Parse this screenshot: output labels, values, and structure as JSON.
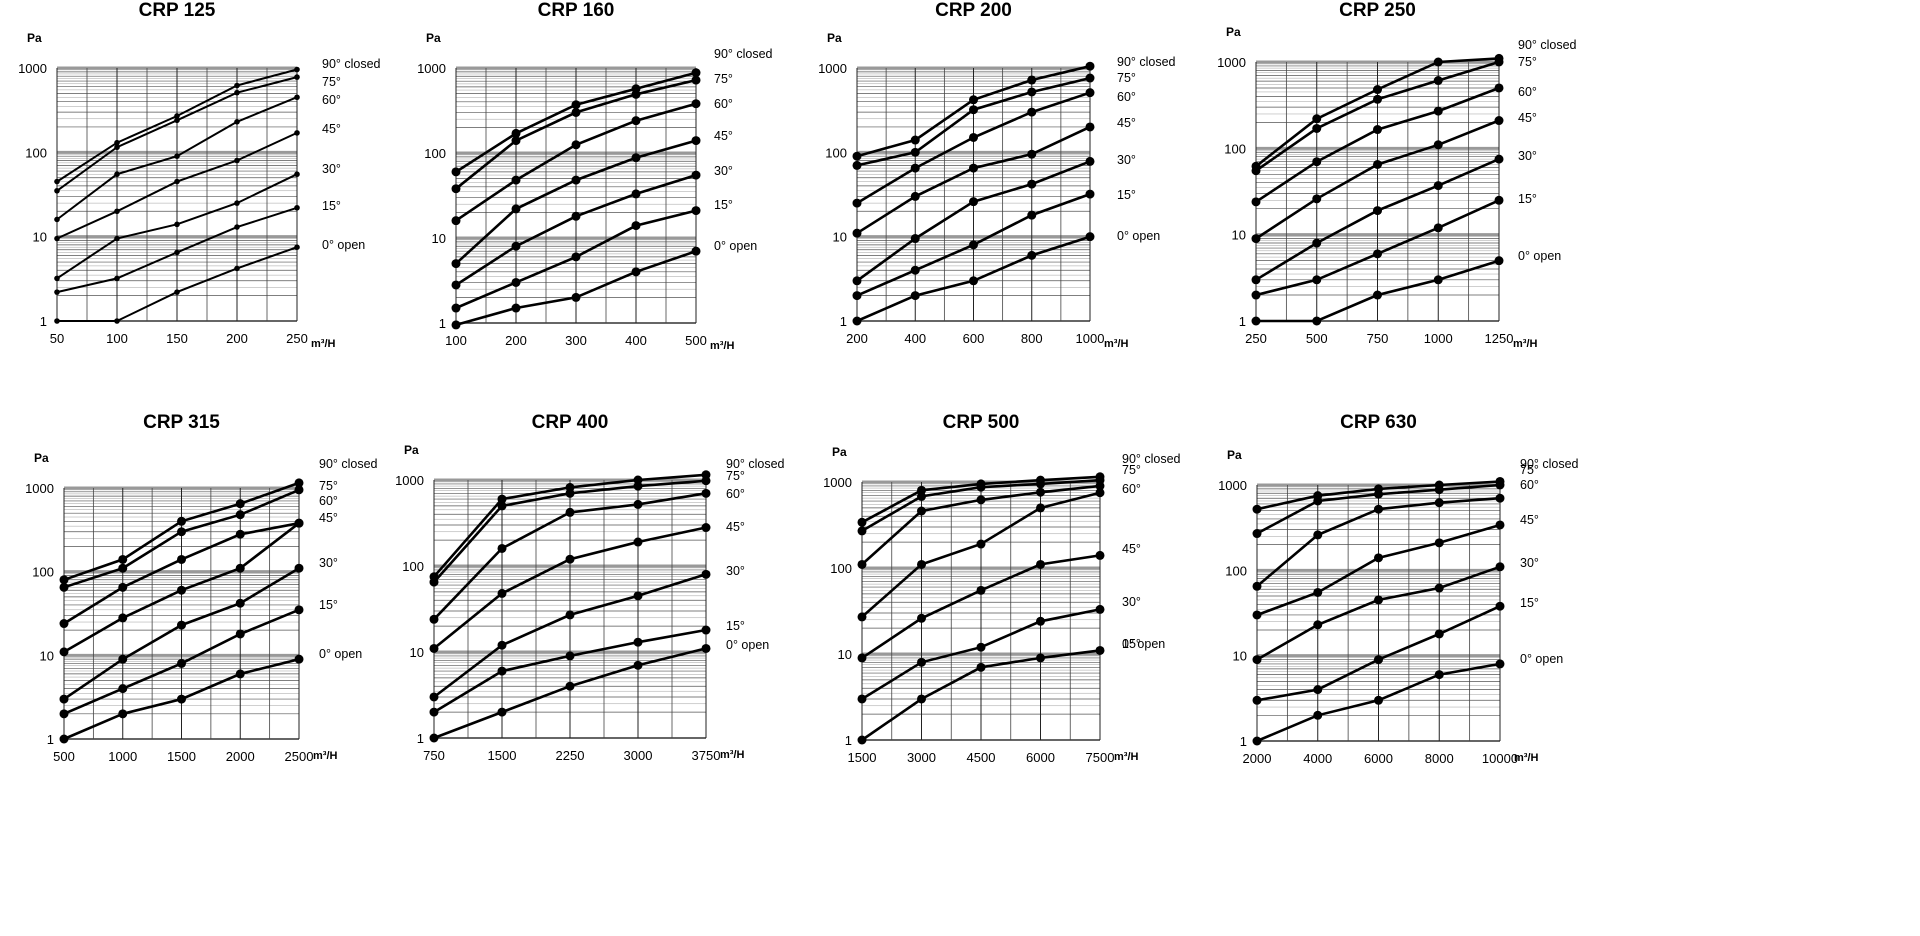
{
  "common": {
    "y_unit": "Pa",
    "x_unit": "m³/H"
  },
  "chart_data": [
    {
      "type": "line",
      "title": "CRP 125",
      "ylabel": "Pa",
      "xlabel": "m³/H",
      "x": [
        50,
        100,
        150,
        200,
        250
      ],
      "xlim": [
        50,
        250
      ],
      "ylim": [
        1,
        1000
      ],
      "yscale": "log",
      "xticks": [
        "50",
        "100",
        "150",
        "200",
        "250"
      ],
      "yticks": [
        "1",
        "10",
        "100",
        "1000"
      ],
      "grid": true,
      "series": [
        {
          "name": "90° closed",
          "values": [
            45,
            130,
            270,
            620,
            960
          ]
        },
        {
          "name": "75°",
          "values": [
            35,
            115,
            240,
            510,
            780
          ]
        },
        {
          "name": "60°",
          "values": [
            16,
            55,
            90,
            230,
            450
          ]
        },
        {
          "name": "45°",
          "values": [
            9.5,
            20,
            45,
            80,
            170
          ]
        },
        {
          "name": "30°",
          "values": [
            3.2,
            9.5,
            14,
            25,
            55
          ]
        },
        {
          "name": "15°",
          "values": [
            2.2,
            3.2,
            6.5,
            13,
            22
          ]
        },
        {
          "name": "0° open",
          "values": [
            1,
            1,
            2.2,
            4.2,
            7.5
          ]
        }
      ]
    },
    {
      "type": "line",
      "title": "CRP 160",
      "ylabel": "Pa",
      "xlabel": "m³/H",
      "x": [
        100,
        200,
        300,
        400,
        500
      ],
      "xlim": [
        100,
        500
      ],
      "ylim": [
        1,
        1000
      ],
      "yscale": "log",
      "xticks": [
        "100",
        "200",
        "300",
        "400",
        "500"
      ],
      "yticks": [
        "1",
        "10",
        "100",
        "1000"
      ],
      "grid": true,
      "series": [
        {
          "name": "90° closed",
          "values": [
            60,
            170,
            370,
            570,
            880
          ]
        },
        {
          "name": "75°",
          "values": [
            38,
            140,
            300,
            490,
            720
          ]
        },
        {
          "name": "60°",
          "values": [
            16,
            48,
            125,
            240,
            380
          ]
        },
        {
          "name": "45°",
          "values": [
            5,
            22,
            48,
            88,
            140
          ]
        },
        {
          "name": "30°",
          "values": [
            2.8,
            8,
            18,
            33,
            55
          ]
        },
        {
          "name": "15°",
          "values": [
            1.5,
            3,
            6,
            14,
            21
          ]
        },
        {
          "name": "0° open",
          "values": [
            0.95,
            1.5,
            2,
            4,
            7
          ]
        }
      ]
    },
    {
      "type": "line",
      "title": "CRP 200",
      "ylabel": "Pa",
      "xlabel": "m³/H",
      "x": [
        200,
        400,
        600,
        800,
        1000
      ],
      "xlim": [
        200,
        1000
      ],
      "ylim": [
        1,
        1000
      ],
      "yscale": "log",
      "xticks": [
        "200",
        "400",
        "600",
        "800",
        "1000"
      ],
      "yticks": [
        "1",
        "10",
        "100",
        "1000"
      ],
      "grid": true,
      "series": [
        {
          "name": "90° closed",
          "values": [
            90,
            140,
            420,
            720,
            1050
          ]
        },
        {
          "name": "75°",
          "values": [
            70,
            100,
            320,
            520,
            760
          ]
        },
        {
          "name": "60°",
          "values": [
            25,
            65,
            150,
            300,
            510
          ]
        },
        {
          "name": "45°",
          "values": [
            11,
            30,
            65,
            95,
            200
          ]
        },
        {
          "name": "30°",
          "values": [
            3,
            9.5,
            26,
            42,
            78
          ]
        },
        {
          "name": "15°",
          "values": [
            2,
            4,
            8,
            18,
            32
          ]
        },
        {
          "name": "0° open",
          "values": [
            1,
            2,
            3,
            6,
            10
          ]
        }
      ]
    },
    {
      "type": "line",
      "title": "CRP 250",
      "ylabel": "Pa",
      "xlabel": "m³/H",
      "x": [
        250,
        500,
        750,
        1000,
        1250
      ],
      "xlim": [
        250,
        1250
      ],
      "ylim": [
        1,
        1000
      ],
      "yscale": "log",
      "xticks": [
        "250",
        "500",
        "750",
        "1000",
        "1250"
      ],
      "yticks": [
        "1",
        "10",
        "100",
        "1000"
      ],
      "grid": true,
      "series": [
        {
          "name": "90° closed",
          "values": [
            62,
            220,
            480,
            1000,
            1100
          ]
        },
        {
          "name": "75°",
          "values": [
            55,
            170,
            370,
            610,
            1000
          ]
        },
        {
          "name": "60°",
          "values": [
            24,
            70,
            165,
            270,
            500
          ]
        },
        {
          "name": "45°",
          "values": [
            9,
            26,
            65,
            110,
            210
          ]
        },
        {
          "name": "30°",
          "values": [
            3,
            8,
            19,
            37,
            75
          ]
        },
        {
          "name": "15°",
          "values": [
            2,
            3,
            6,
            12,
            25
          ]
        },
        {
          "name": "0° open",
          "values": [
            1,
            1,
            2,
            3,
            5
          ]
        }
      ]
    },
    {
      "type": "line",
      "title": "CRP 315",
      "ylabel": "Pa",
      "xlabel": "m³/H",
      "x": [
        500,
        1000,
        1500,
        2000,
        2500
      ],
      "xlim": [
        500,
        2500
      ],
      "ylim": [
        1,
        1000
      ],
      "yscale": "log",
      "xticks": [
        "500",
        "1000",
        "1500",
        "2000",
        "2500"
      ],
      "yticks": [
        "1",
        "10",
        "100",
        "1000"
      ],
      "grid": true,
      "series": [
        {
          "name": "90° closed",
          "values": [
            80,
            140,
            400,
            650,
            1150
          ]
        },
        {
          "name": "75°",
          "values": [
            65,
            110,
            300,
            480,
            950
          ]
        },
        {
          "name": "60°",
          "values": [
            24,
            65,
            140,
            280,
            380
          ]
        },
        {
          "name": "45°",
          "values": [
            11,
            28,
            60,
            110,
            380
          ]
        },
        {
          "name": "30°",
          "values": [
            3,
            9,
            23,
            42,
            110
          ]
        },
        {
          "name": "15°",
          "values": [
            2,
            4,
            8,
            18,
            35
          ]
        },
        {
          "name": "0° open",
          "values": [
            1,
            2,
            3,
            6,
            9
          ]
        }
      ]
    },
    {
      "type": "line",
      "title": "CRP 400",
      "ylabel": "Pa",
      "xlabel": "m³/H",
      "x": [
        750,
        1500,
        2250,
        3000,
        3750
      ],
      "xlim": [
        750,
        3750
      ],
      "ylim": [
        1,
        1000
      ],
      "yscale": "log",
      "xticks": [
        "750",
        "1500",
        "2250",
        "3000",
        "3750"
      ],
      "yticks": [
        "1",
        "10",
        "100",
        "1000"
      ],
      "grid": true,
      "series": [
        {
          "name": "90° closed",
          "values": [
            75,
            600,
            820,
            1000,
            1150
          ]
        },
        {
          "name": "75°",
          "values": [
            65,
            500,
            700,
            850,
            980
          ]
        },
        {
          "name": "60°",
          "values": [
            24,
            160,
            420,
            520,
            700
          ]
        },
        {
          "name": "45°",
          "values": [
            11,
            48,
            120,
            190,
            280
          ]
        },
        {
          "name": "30°",
          "values": [
            3,
            12,
            27,
            45,
            80
          ]
        },
        {
          "name": "15°",
          "values": [
            2,
            6,
            9,
            13,
            18
          ]
        },
        {
          "name": "0° open",
          "values": [
            1,
            2,
            4,
            7,
            11
          ]
        }
      ]
    },
    {
      "type": "line",
      "title": "CRP 500",
      "ylabel": "Pa",
      "xlabel": "m³/H",
      "x": [
        1500,
        3000,
        4500,
        6000,
        7500
      ],
      "xlim": [
        1500,
        7500
      ],
      "ylim": [
        1,
        1000
      ],
      "yscale": "log",
      "xticks": [
        "1500",
        "3000",
        "4500",
        "6000",
        "7500"
      ],
      "yticks": [
        "1",
        "10",
        "100",
        "1000"
      ],
      "grid": true,
      "series": [
        {
          "name": "90° closed",
          "values": [
            340,
            800,
            950,
            1050,
            1150
          ]
        },
        {
          "name": "75°",
          "values": [
            270,
            680,
            870,
            950,
            1050
          ]
        },
        {
          "name": "60°",
          "values": [
            110,
            460,
            620,
            760,
            900
          ]
        },
        {
          "name": "45°",
          "values": [
            27,
            110,
            190,
            500,
            750
          ]
        },
        {
          "name": "30°",
          "values": [
            9,
            26,
            55,
            110,
            140
          ]
        },
        {
          "name": "15°",
          "values": [
            3,
            8,
            12,
            24,
            33
          ]
        },
        {
          "name": "0° open",
          "values": [
            1,
            3,
            7,
            9,
            11
          ]
        }
      ]
    },
    {
      "type": "line",
      "title": "CRP 630",
      "ylabel": "Pa",
      "xlabel": "m³/H",
      "x": [
        2000,
        4000,
        6000,
        8000,
        10000
      ],
      "xlim": [
        2000,
        10000
      ],
      "ylim": [
        1,
        1000
      ],
      "yscale": "log",
      "xticks": [
        "2000",
        "4000",
        "6000",
        "8000",
        "10000"
      ],
      "yticks": [
        "1",
        "10",
        "100",
        "1000"
      ],
      "grid": true,
      "series": [
        {
          "name": "90° closed",
          "values": [
            520,
            750,
            900,
            1000,
            1100
          ]
        },
        {
          "name": "75°",
          "values": [
            270,
            650,
            780,
            880,
            1000
          ]
        },
        {
          "name": "60°",
          "values": [
            65,
            260,
            520,
            620,
            700
          ]
        },
        {
          "name": "45°",
          "values": [
            30,
            55,
            140,
            210,
            340
          ]
        },
        {
          "name": "30°",
          "values": [
            9,
            23,
            45,
            62,
            110
          ]
        },
        {
          "name": "15°",
          "values": [
            3,
            4,
            9,
            18,
            38
          ]
        },
        {
          "name": "0° open",
          "values": [
            1,
            2,
            3,
            6,
            8
          ]
        }
      ]
    }
  ]
}
